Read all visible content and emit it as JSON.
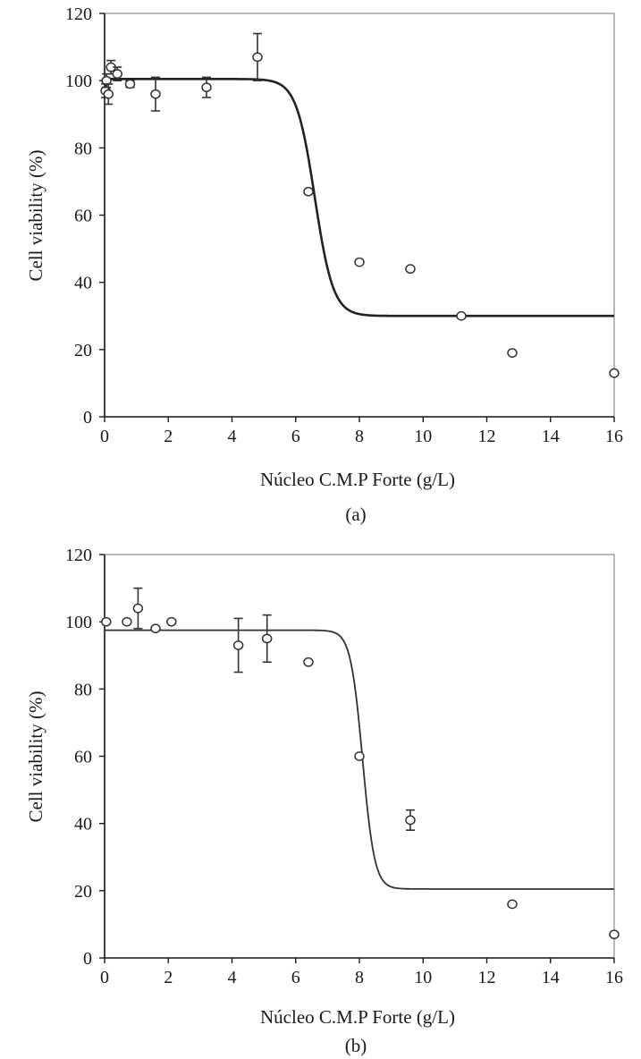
{
  "chart_data": [
    {
      "type": "scatter",
      "panel_label": "(a)",
      "xlabel": "Núcleo C.M.P Forte (g/L)",
      "ylabel": "Cell viability (%)",
      "xlim": [
        0,
        16
      ],
      "ylim": [
        0,
        120
      ],
      "xticks": [
        "0",
        "2",
        "4",
        "6",
        "8",
        "10",
        "12",
        "14",
        "16"
      ],
      "yticks": [
        "0",
        "20",
        "40",
        "60",
        "80",
        "100",
        "120"
      ],
      "grid": false,
      "legend": "none",
      "points": [
        {
          "x": 0.03,
          "y": 97,
          "err": 2
        },
        {
          "x": 0.06,
          "y": 100,
          "err": 2
        },
        {
          "x": 0.12,
          "y": 96,
          "err": 3
        },
        {
          "x": 0.2,
          "y": 104,
          "err": 2
        },
        {
          "x": 0.4,
          "y": 102,
          "err": 2
        },
        {
          "x": 0.8,
          "y": 99,
          "err": 1
        },
        {
          "x": 1.6,
          "y": 96,
          "err": 5
        },
        {
          "x": 3.2,
          "y": 98,
          "err": 3
        },
        {
          "x": 4.8,
          "y": 107,
          "err": 7
        },
        {
          "x": 6.4,
          "y": 67,
          "err": 0
        },
        {
          "x": 8.0,
          "y": 46,
          "err": 0
        },
        {
          "x": 9.6,
          "y": 44,
          "err": 0
        },
        {
          "x": 11.2,
          "y": 30,
          "err": 0
        },
        {
          "x": 12.8,
          "y": 19,
          "err": 0
        },
        {
          "x": 16.0,
          "y": 13,
          "err": 0
        }
      ],
      "fit_curve": {
        "top": 100.5,
        "bottom": 30,
        "ec50": 6.6,
        "hill_slope": 1.5
      }
    },
    {
      "type": "scatter",
      "panel_label": "(b)",
      "xlabel": "Núcleo C.M.P Forte (g/L)",
      "ylabel": "Cell viability (%)",
      "xlim": [
        0,
        16
      ],
      "ylim": [
        0,
        120
      ],
      "xticks": [
        "0",
        "2",
        "4",
        "6",
        "8",
        "10",
        "12",
        "14",
        "16"
      ],
      "yticks": [
        "0",
        "20",
        "40",
        "60",
        "80",
        "100",
        "120"
      ],
      "grid": false,
      "legend": "none",
      "points": [
        {
          "x": 0.05,
          "y": 100,
          "err": 0
        },
        {
          "x": 0.7,
          "y": 100,
          "err": 0
        },
        {
          "x": 1.05,
          "y": 104,
          "err": 6
        },
        {
          "x": 1.6,
          "y": 98,
          "err": 0
        },
        {
          "x": 2.1,
          "y": 100,
          "err": 0
        },
        {
          "x": 4.2,
          "y": 93,
          "err": 8
        },
        {
          "x": 5.1,
          "y": 95,
          "err": 7
        },
        {
          "x": 6.4,
          "y": 88,
          "err": 0
        },
        {
          "x": 8.0,
          "y": 60,
          "err": 0
        },
        {
          "x": 9.6,
          "y": 41,
          "err": 3
        },
        {
          "x": 12.8,
          "y": 16,
          "err": 0
        },
        {
          "x": 16.0,
          "y": 7,
          "err": 0
        }
      ],
      "fit_curve": {
        "top": 97.5,
        "bottom": 20.5,
        "ec50": 8.1,
        "hill_slope": 2.3
      }
    }
  ],
  "colors": {
    "axis": "#1a1a1a",
    "frame": "#8a8a8a",
    "marker_stroke": "#333333",
    "curve_a": "#222222",
    "curve_b": "#333333"
  }
}
